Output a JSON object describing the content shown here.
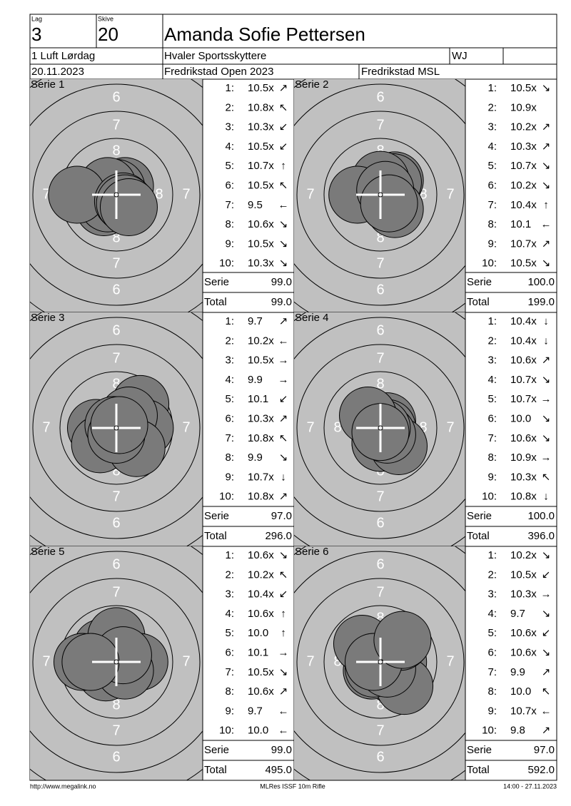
{
  "header": {
    "lag_label": "Lag",
    "lag": "3",
    "skive_label": "Skive",
    "skive": "20",
    "name": "Amanda Sofie Pettersen",
    "event": "1 Luft Lørdag",
    "club": "Hvaler Sportsskyttere",
    "class": "WJ",
    "date": "20.11.2023",
    "competition": "Fredrikstad Open 2023",
    "organizer": "Fredrikstad MSL"
  },
  "ring_labels": [
    "6",
    "7",
    "8"
  ],
  "serie_label": "Serie",
  "total_label": "Total",
  "series": [
    {
      "title": "Serie 1",
      "serie": "99.0",
      "total": "99.0",
      "shots": [
        {
          "n": "1:",
          "score": "10.5x",
          "dir": "↗"
        },
        {
          "n": "2:",
          "score": "10.8x",
          "dir": "↖"
        },
        {
          "n": "3:",
          "score": "10.3x",
          "dir": "↙"
        },
        {
          "n": "4:",
          "score": "10.5x",
          "dir": "↙"
        },
        {
          "n": "5:",
          "score": "10.7x",
          "dir": "↑"
        },
        {
          "n": "6:",
          "score": "10.5x",
          "dir": "↖"
        },
        {
          "n": "7:",
          "score": "9.5",
          "dir": "←"
        },
        {
          "n": "8:",
          "score": "10.6x",
          "dir": "↘"
        },
        {
          "n": "9:",
          "score": "10.5x",
          "dir": "↘"
        },
        {
          "n": "10:",
          "score": "10.3x",
          "dir": "↘"
        }
      ]
    },
    {
      "title": "Serie 2",
      "serie": "100.0",
      "total": "199.0",
      "shots": [
        {
          "n": "1:",
          "score": "10.5x",
          "dir": "↘"
        },
        {
          "n": "2:",
          "score": "10.9x"
        },
        {
          "n": "3:",
          "score": "10.2x",
          "dir": "↗"
        },
        {
          "n": "4:",
          "score": "10.3x",
          "dir": "↗"
        },
        {
          "n": "5:",
          "score": "10.7x",
          "dir": "↘"
        },
        {
          "n": "6:",
          "score": "10.2x",
          "dir": "↘"
        },
        {
          "n": "7:",
          "score": "10.4x",
          "dir": "↑"
        },
        {
          "n": "8:",
          "score": "10.1",
          "dir": "←"
        },
        {
          "n": "9:",
          "score": "10.7x",
          "dir": "↗"
        },
        {
          "n": "10:",
          "score": "10.5x",
          "dir": "↘"
        }
      ]
    },
    {
      "title": "Serie 3",
      "serie": "97.0",
      "total": "296.0",
      "shots": [
        {
          "n": "1:",
          "score": "9.7",
          "dir": "↗"
        },
        {
          "n": "2:",
          "score": "10.2x",
          "dir": "←"
        },
        {
          "n": "3:",
          "score": "10.5x",
          "dir": "→"
        },
        {
          "n": "4:",
          "score": "9.9",
          "dir": "→"
        },
        {
          "n": "5:",
          "score": "10.1",
          "dir": "↙"
        },
        {
          "n": "6:",
          "score": "10.3x",
          "dir": "↗"
        },
        {
          "n": "7:",
          "score": "10.8x",
          "dir": "↖"
        },
        {
          "n": "8:",
          "score": "9.9",
          "dir": "↘"
        },
        {
          "n": "9:",
          "score": "10.7x",
          "dir": "↓"
        },
        {
          "n": "10:",
          "score": "10.8x",
          "dir": "↗"
        }
      ]
    },
    {
      "title": "Serie 4",
      "serie": "100.0",
      "total": "396.0",
      "shots": [
        {
          "n": "1:",
          "score": "10.4x",
          "dir": "↓"
        },
        {
          "n": "2:",
          "score": "10.4x",
          "dir": "↓"
        },
        {
          "n": "3:",
          "score": "10.6x",
          "dir": "↗"
        },
        {
          "n": "4:",
          "score": "10.7x",
          "dir": "↘"
        },
        {
          "n": "5:",
          "score": "10.7x",
          "dir": "→"
        },
        {
          "n": "6:",
          "score": "10.0",
          "dir": "↘"
        },
        {
          "n": "7:",
          "score": "10.6x",
          "dir": "↘"
        },
        {
          "n": "8:",
          "score": "10.9x",
          "dir": "→"
        },
        {
          "n": "9:",
          "score": "10.3x",
          "dir": "↖"
        },
        {
          "n": "10:",
          "score": "10.8x",
          "dir": "↓"
        }
      ]
    },
    {
      "title": "Serie 5",
      "serie": "99.0",
      "total": "495.0",
      "shots": [
        {
          "n": "1:",
          "score": "10.6x",
          "dir": "↘"
        },
        {
          "n": "2:",
          "score": "10.2x",
          "dir": "↖"
        },
        {
          "n": "3:",
          "score": "10.4x",
          "dir": "↙"
        },
        {
          "n": "4:",
          "score": "10.6x",
          "dir": "↑"
        },
        {
          "n": "5:",
          "score": "10.0",
          "dir": "↑"
        },
        {
          "n": "6:",
          "score": "10.1",
          "dir": "→"
        },
        {
          "n": "7:",
          "score": "10.5x",
          "dir": "↘"
        },
        {
          "n": "8:",
          "score": "10.6x",
          "dir": "↗"
        },
        {
          "n": "9:",
          "score": "9.7",
          "dir": "←"
        },
        {
          "n": "10:",
          "score": "10.0",
          "dir": "←"
        }
      ]
    },
    {
      "title": "Serie 6",
      "serie": "97.0",
      "total": "592.0",
      "shots": [
        {
          "n": "1:",
          "score": "10.2x",
          "dir": "↘"
        },
        {
          "n": "2:",
          "score": "10.5x",
          "dir": "↙"
        },
        {
          "n": "3:",
          "score": "10.3x",
          "dir": "→"
        },
        {
          "n": "4:",
          "score": "9.7",
          "dir": "↘"
        },
        {
          "n": "5:",
          "score": "10.6x",
          "dir": "↙"
        },
        {
          "n": "6:",
          "score": "10.6x",
          "dir": "↘"
        },
        {
          "n": "7:",
          "score": "9.9",
          "dir": "↗"
        },
        {
          "n": "8:",
          "score": "10.0",
          "dir": "↖"
        },
        {
          "n": "9:",
          "score": "10.7x",
          "dir": "←"
        },
        {
          "n": "10:",
          "score": "9.8",
          "dir": "↗"
        }
      ]
    }
  ],
  "footer": {
    "left": "http://www.megalink.no",
    "center": "MLRes ISSF 10m Rifle",
    "right": "14:00 - 27.11.2023"
  }
}
